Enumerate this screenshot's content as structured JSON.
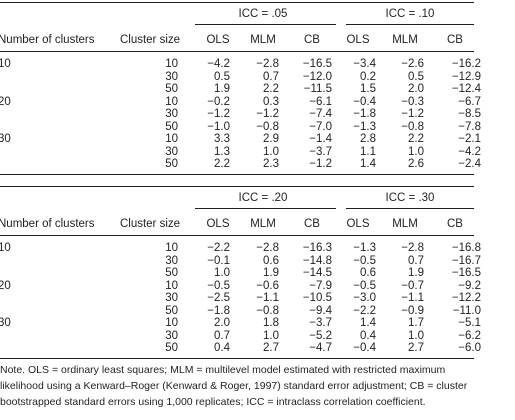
{
  "blocks": [
    {
      "groups": [
        "ICC = .05",
        "ICC = .10"
      ],
      "columns": [
        "Number of clusters",
        "Cluster size",
        "OLS",
        "MLM",
        "CB",
        "OLS",
        "MLM",
        "CB"
      ],
      "rows": [
        [
          "10",
          "10",
          "−4.2",
          "−2.8",
          "−16.5",
          "−3.4",
          "−2.6",
          "−16.2"
        ],
        [
          null,
          "30",
          "0.5",
          "0.7",
          "−12.0",
          "0.2",
          "0.5",
          "−12.9"
        ],
        [
          null,
          "50",
          "1.9",
          "2.2",
          "−11.5",
          "1.5",
          "2.0",
          "−12.4"
        ],
        [
          "20",
          "10",
          "−0.2",
          "0.3",
          "−6.1",
          "−0.4",
          "−0.3",
          "−6.7"
        ],
        [
          null,
          "30",
          "−1.2",
          "−1.2",
          "−7.4",
          "−1.8",
          "−1.2",
          "−8.5"
        ],
        [
          null,
          "50",
          "−1.0",
          "−0.8",
          "−7.0",
          "−1.3",
          "−0.8",
          "−7.8"
        ],
        [
          "30",
          "10",
          "3.3",
          "2.9",
          "−1.4",
          "2.8",
          "2.2",
          "−2.1"
        ],
        [
          null,
          "30",
          "1.3",
          "1.0",
          "−3.7",
          "1.1",
          "1.0",
          "−4.2"
        ],
        [
          null,
          "50",
          "2.2",
          "2.3",
          "−1.2",
          "1.4",
          "2.6",
          "−2.4"
        ]
      ]
    },
    {
      "groups": [
        "ICC = .20",
        "ICC = .30"
      ],
      "columns": [
        "Number of clusters",
        "Cluster size",
        "OLS",
        "MLM",
        "CB",
        "OLS",
        "MLM",
        "CB"
      ],
      "rows": [
        [
          "10",
          "10",
          "−2.2",
          "−2.8",
          "−16.3",
          "−1.3",
          "−2.8",
          "−16.8"
        ],
        [
          null,
          "30",
          "−0.1",
          "0.6",
          "−14.8",
          "−0.5",
          "0.7",
          "−16.7"
        ],
        [
          null,
          "50",
          "1.0",
          "1.9",
          "−14.5",
          "0.6",
          "1.9",
          "−16.5"
        ],
        [
          "20",
          "10",
          "−0.5",
          "−0.6",
          "−7.9",
          "−0.5",
          "−0.7",
          "−9.2"
        ],
        [
          null,
          "30",
          "−2.5",
          "−1.1",
          "−10.5",
          "−3.0",
          "−1.1",
          "−12.2"
        ],
        [
          null,
          "50",
          "−1.8",
          "−0.8",
          "−9.4",
          "−2.2",
          "−0.9",
          "−11.0"
        ],
        [
          "30",
          "10",
          "2.0",
          "1.8",
          "−3.7",
          "1.4",
          "1.7",
          "−5.1"
        ],
        [
          null,
          "30",
          "0.7",
          "1.0",
          "−5.2",
          "0.4",
          "1.0",
          "−6.2"
        ],
        [
          null,
          "50",
          "0.4",
          "2.7",
          "−4.7",
          "−0.4",
          "2.7",
          "−6.0"
        ]
      ]
    }
  ],
  "note": "Note. OLS = ordinary least squares; MLM = multilevel model estimated with restricted maximum likelihood using a Kenward–Roger (Kenward & Roger, 1997) standard error adjustment; CB = cluster bootstrapped standard errors using 1,000 replicates; ICC = intraclass correlation coefficient."
}
